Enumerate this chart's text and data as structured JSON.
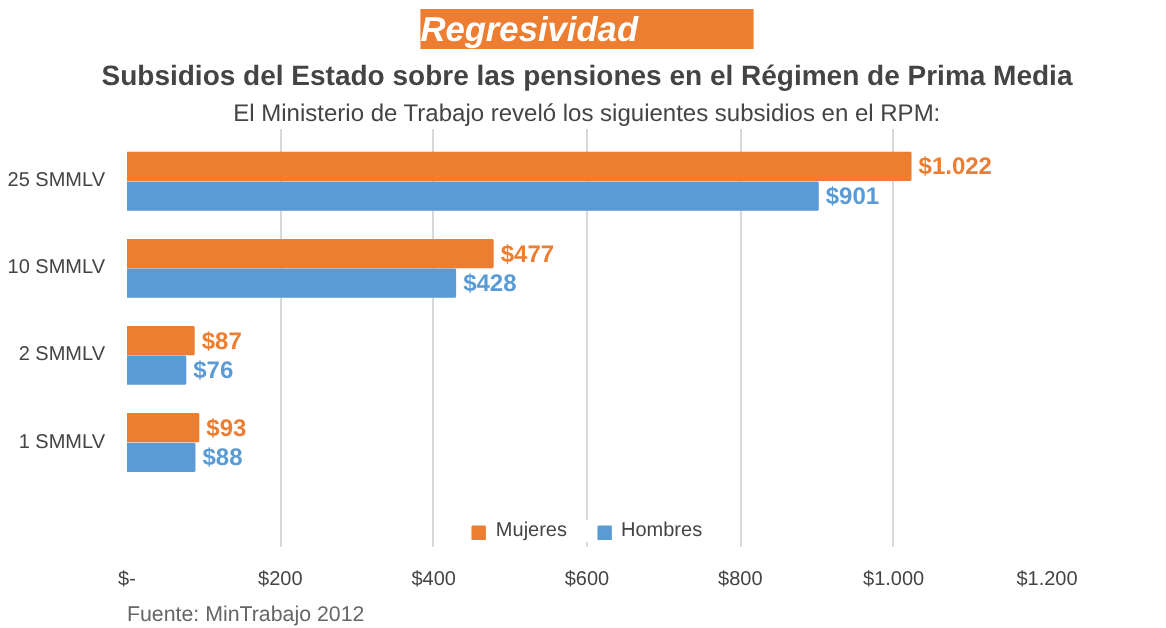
{
  "chart_data": {
    "type": "bar",
    "orientation": "horizontal",
    "title": "Regresividad",
    "subtitle": "Subsidios del Estado sobre las pensiones en el Régimen de Prima Media",
    "annotations": [
      "El Ministerio de Trabajo reveló los siguientes subsidios en el RPM:",
      "Fuente: MinTrabajo 2012"
    ],
    "categories": [
      "25 SMMLV",
      "10 SMMLV",
      "2 SMMLV",
      "1 SMMLV"
    ],
    "series": [
      {
        "name": "Mujeres",
        "color": "#ed7d31",
        "values": [
          1022,
          477,
          87,
          93
        ],
        "value_labels": [
          "$1.022",
          "$477",
          "$87",
          "$93"
        ]
      },
      {
        "name": "Hombres",
        "color": "#5b9bd5",
        "values": [
          901,
          428,
          76,
          88
        ],
        "value_labels": [
          "$901",
          "$428",
          "$76",
          "$88"
        ]
      }
    ],
    "xlim": [
      0,
      1200
    ],
    "xticks": [
      {
        "value": 0,
        "label": "$-"
      },
      {
        "value": 200,
        "label": "$200"
      },
      {
        "value": 400,
        "label": "$400"
      },
      {
        "value": 600,
        "label": "$600"
      },
      {
        "value": 800,
        "label": "$800"
      },
      {
        "value": 1000,
        "label": "$1.000"
      },
      {
        "value": 1200,
        "label": "$1.200"
      }
    ],
    "grid": "x",
    "legend": "bottom"
  }
}
